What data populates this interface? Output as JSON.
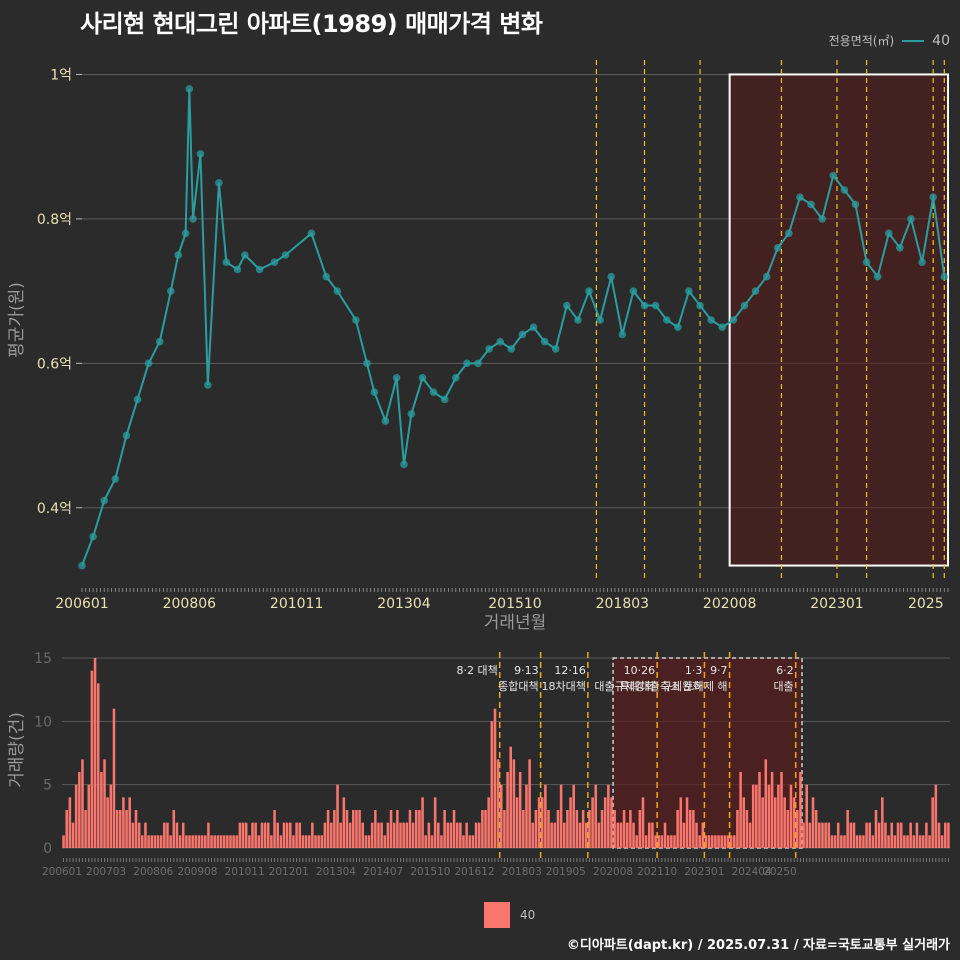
{
  "title": "사리현 현대그린 아파트(1989) 매매가격 변화",
  "legend": {
    "title": "전용면적(㎡)",
    "series_label": "40",
    "bar_label": "40"
  },
  "footer": "©디아파트(dapt.kr) / 2025.07.31 / 자료=국토교통부 실거래가",
  "colors": {
    "background": "#2b2b2c",
    "line": "#2a9d9f",
    "bar": "#f8766d",
    "policy": "#e6c619",
    "highlight": "#5a1a1a"
  },
  "chart_data": [
    {
      "type": "line",
      "xlabel": "거래년월",
      "ylabel": "평균가(원)",
      "xlim": [
        "2006-01",
        "2025-07"
      ],
      "ylim": [
        0.3,
        1.02
      ],
      "y_unit": "억",
      "y_ticks": [
        "0.4억",
        "0.6억",
        "0.8억",
        "1억"
      ],
      "y_tick_values": [
        0.4,
        0.6,
        0.8,
        1.0
      ],
      "x_tick_labels": [
        "200601",
        "200806",
        "201011",
        "201304",
        "201510",
        "201803",
        "202008",
        "202301",
        "2025"
      ],
      "highlight_range": [
        "2020-08",
        "2025-07"
      ],
      "policy_lines": [
        "2017-08",
        "2018-09",
        "2019-12",
        "2021-10",
        "2023-01",
        "2023-09",
        "2025-03",
        "2025-06"
      ],
      "series": [
        {
          "name": "40",
          "x": [
            "2006-01",
            "2006-04",
            "2006-07",
            "2006-10",
            "2007-01",
            "2007-04",
            "2007-07",
            "2007-10",
            "2008-01",
            "2008-03",
            "2008-05",
            "2008-06",
            "2008-07",
            "2008-09",
            "2008-11",
            "2009-02",
            "2009-04",
            "2009-07",
            "2009-09",
            "2010-01",
            "2010-05",
            "2010-08",
            "2011-03",
            "2011-07",
            "2011-10",
            "2012-03",
            "2012-06",
            "2012-08",
            "2012-11",
            "2013-02",
            "2013-04",
            "2013-06",
            "2013-09",
            "2013-12",
            "2014-03",
            "2014-06",
            "2014-09",
            "2014-12",
            "2015-03",
            "2015-06",
            "2015-09",
            "2015-12",
            "2016-03",
            "2016-06",
            "2016-09",
            "2016-12",
            "2017-03",
            "2017-06",
            "2017-09",
            "2017-12",
            "2018-03",
            "2018-06",
            "2018-09",
            "2018-12",
            "2019-03",
            "2019-06",
            "2019-09",
            "2019-12",
            "2020-03",
            "2020-06",
            "2020-09",
            "2020-12",
            "2021-03",
            "2021-06",
            "2021-09",
            "2021-12",
            "2022-03",
            "2022-06",
            "2022-09",
            "2022-12",
            "2023-03",
            "2023-06",
            "2023-09",
            "2023-12",
            "2024-03",
            "2024-06",
            "2024-09",
            "2024-12",
            "2025-03",
            "2025-06"
          ],
          "values": [
            0.32,
            0.36,
            0.41,
            0.44,
            0.5,
            0.55,
            0.6,
            0.63,
            0.7,
            0.75,
            0.78,
            0.98,
            0.8,
            0.89,
            0.57,
            0.85,
            0.74,
            0.73,
            0.75,
            0.73,
            0.74,
            0.75,
            0.78,
            0.72,
            0.7,
            0.66,
            0.6,
            0.56,
            0.52,
            0.58,
            0.46,
            0.53,
            0.58,
            0.56,
            0.55,
            0.58,
            0.6,
            0.6,
            0.62,
            0.63,
            0.62,
            0.64,
            0.65,
            0.63,
            0.62,
            0.68,
            0.66,
            0.7,
            0.66,
            0.72,
            0.64,
            0.7,
            0.68,
            0.68,
            0.66,
            0.65,
            0.7,
            0.68,
            0.66,
            0.65,
            0.66,
            0.68,
            0.7,
            0.72,
            0.76,
            0.78,
            0.83,
            0.82,
            0.8,
            0.86,
            0.84,
            0.82,
            0.74,
            0.72,
            0.78,
            0.76,
            0.8,
            0.74,
            0.83,
            0.72
          ]
        }
      ]
    },
    {
      "type": "bar",
      "xlabel": "",
      "ylabel": "거래량(건)",
      "ylim": [
        0,
        15
      ],
      "y_ticks": [
        "0",
        "5",
        "10",
        "15"
      ],
      "y_tick_values": [
        0,
        5,
        10,
        15
      ],
      "x_tick_labels": [
        "200601",
        "200703",
        "200806",
        "200908",
        "201011",
        "201201",
        "201304",
        "201407",
        "201510",
        "201612",
        "201803",
        "201905",
        "202008",
        "202110",
        "202301",
        "202404",
        "20250"
      ],
      "highlight_range": [
        "2020-08",
        "2025-07"
      ],
      "annotations": [
        {
          "date": "2017-08",
          "lines": [
            "8·2 대책"
          ]
        },
        {
          "date": "2018-09",
          "lines": [
            "9·13",
            "종합대책"
          ]
        },
        {
          "date": "2019-12",
          "lines": [
            "12·16",
            "18차대책"
          ]
        },
        {
          "date": "2021-10",
          "lines": [
            "10·26",
            "대출규제강화"
          ]
        },
        {
          "date": "2023-01",
          "lines": [
            "1·3",
            "규제완화"
          ]
        },
        {
          "date": "2023-09",
          "lines": [
            "9·7",
            "특례대출축소 토허제 해"
          ]
        },
        {
          "date": "2025-06",
          "lines": [
            "6·2",
            "대출"
          ]
        }
      ],
      "series": [
        {
          "name": "40",
          "start": "2006-01",
          "values": [
            1,
            3,
            4,
            2,
            5,
            6,
            7,
            3,
            5,
            14,
            15,
            13,
            6,
            7,
            4,
            5,
            11,
            3,
            3,
            4,
            3,
            4,
            2,
            3,
            2,
            1,
            2,
            1,
            1,
            1,
            1,
            1,
            2,
            2,
            1,
            3,
            2,
            1,
            2,
            1,
            1,
            1,
            1,
            1,
            1,
            1,
            2,
            1,
            1,
            1,
            1,
            1,
            1,
            1,
            1,
            1,
            2,
            2,
            2,
            1,
            2,
            2,
            1,
            2,
            2,
            2,
            1,
            3,
            2,
            1,
            2,
            2,
            2,
            1,
            2,
            2,
            1,
            1,
            1,
            2,
            1,
            1,
            1,
            2,
            3,
            2,
            3,
            5,
            2,
            4,
            3,
            2,
            3,
            3,
            3,
            2,
            1,
            1,
            2,
            3,
            2,
            2,
            1,
            2,
            3,
            2,
            3,
            2,
            2,
            2,
            3,
            2,
            3,
            3,
            4,
            1,
            2,
            1,
            4,
            2,
            1,
            3,
            2,
            2,
            3,
            2,
            2,
            1,
            2,
            1,
            1,
            2,
            2,
            3,
            3,
            4,
            10,
            11,
            7,
            5,
            3,
            6,
            8,
            7,
            4,
            6,
            3,
            5,
            7,
            2,
            3,
            4,
            4,
            5,
            3,
            2,
            2,
            3,
            5,
            2,
            3,
            4,
            5,
            3,
            2,
            3,
            2,
            3,
            4,
            5,
            2,
            3,
            4,
            5,
            4,
            3,
            2,
            2,
            3,
            2,
            3,
            2,
            1,
            3,
            4,
            1,
            2,
            2,
            1,
            1,
            1,
            2,
            1,
            1,
            1,
            3,
            4,
            2,
            4,
            3,
            3,
            2,
            1,
            2,
            1,
            1,
            1,
            1,
            1,
            1,
            1,
            1,
            1,
            1,
            3,
            6,
            4,
            3,
            2,
            5,
            5,
            6,
            4,
            7,
            5,
            6,
            4,
            5,
            6,
            4,
            3,
            5,
            4,
            3,
            6,
            2,
            5,
            2,
            4,
            3,
            2,
            2,
            2,
            2,
            1,
            1,
            2,
            1,
            1,
            3,
            2,
            2,
            1,
            1,
            1,
            2,
            2,
            1,
            3,
            2,
            4,
            2,
            1,
            2,
            1,
            2,
            2,
            1,
            1,
            2,
            1,
            2,
            1,
            1,
            2,
            1,
            4,
            5,
            2,
            1,
            2,
            2
          ]
        }
      ]
    }
  ]
}
